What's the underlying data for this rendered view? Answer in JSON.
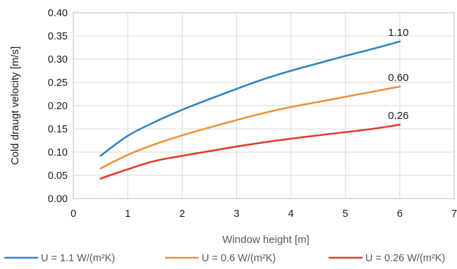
{
  "chart_data": {
    "type": "line",
    "title": "",
    "xlabel": "Window height [m]",
    "ylabel": "Cold draugt velocity [m/s]",
    "xlim": [
      0,
      7
    ],
    "ylim": [
      0,
      0.4
    ],
    "x_ticks": [
      "0",
      "1",
      "2",
      "3",
      "4",
      "5",
      "6",
      "7"
    ],
    "y_ticks": [
      "0.00",
      "0.05",
      "0.10",
      "0.15",
      "0.20",
      "0.25",
      "0.30",
      "0.35",
      "0.40"
    ],
    "grid": true,
    "legend_position": "bottom",
    "series": [
      {
        "name": "U = 1.1 W/(m²K)",
        "end_label": "1.10",
        "color": "#2E86C1",
        "x": [
          0.5,
          1,
          1.5,
          2,
          2.5,
          3,
          3.5,
          4,
          4.5,
          5,
          5.5,
          6
        ],
        "values": [
          0.092,
          0.135,
          0.165,
          0.191,
          0.214,
          0.236,
          0.257,
          0.275,
          0.291,
          0.307,
          0.322,
          0.338
        ]
      },
      {
        "name": "U = 0.6 W/(m²K)",
        "end_label": "0.60",
        "color": "#F0923A",
        "x": [
          0.5,
          1,
          1.5,
          2,
          2.5,
          3,
          3.5,
          4,
          4.5,
          5,
          5.5,
          6
        ],
        "values": [
          0.065,
          0.094,
          0.117,
          0.136,
          0.153,
          0.169,
          0.184,
          0.197,
          0.208,
          0.219,
          0.23,
          0.241
        ]
      },
      {
        "name": "U = 0.26 W/(m²K)",
        "end_label": "0.26",
        "color": "#E03A2E",
        "x": [
          0.5,
          1,
          1.5,
          2,
          2.5,
          3,
          3.5,
          4,
          4.5,
          5,
          5.5,
          6
        ],
        "values": [
          0.043,
          0.063,
          0.081,
          0.092,
          0.102,
          0.112,
          0.121,
          0.129,
          0.136,
          0.143,
          0.15,
          0.159
        ]
      }
    ]
  }
}
